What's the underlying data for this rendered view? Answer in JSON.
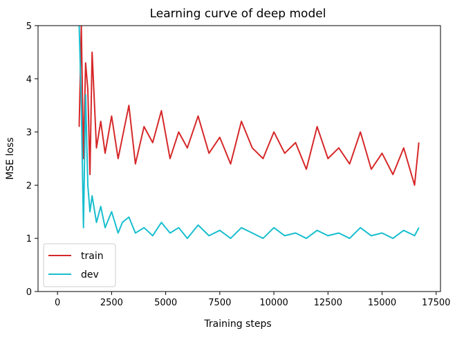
{
  "chart_data": {
    "type": "line",
    "title": "Learning curve of deep model",
    "xlabel": "Training steps",
    "ylabel": "MSE loss",
    "xlim": [
      -900,
      17700
    ],
    "ylim": [
      0,
      5
    ],
    "xticks": [
      0,
      2500,
      5000,
      7500,
      10000,
      12500,
      15000,
      17500
    ],
    "xtick_labels": [
      "0",
      "2500",
      "5000",
      "7500",
      "10000",
      "12500",
      "15000",
      "17500"
    ],
    "yticks": [
      0,
      1,
      2,
      3,
      4,
      5
    ],
    "ytick_labels": [
      "0",
      "1",
      "2",
      "3",
      "4",
      "5"
    ],
    "grid": false,
    "legend": {
      "position": "lower-left"
    },
    "series": [
      {
        "name": "train",
        "color": "#d62728",
        "x": [
          1000,
          1100,
          1200,
          1300,
          1400,
          1500,
          1600,
          1800,
          2000,
          2200,
          2500,
          2800,
          3000,
          3300,
          3600,
          4000,
          4400,
          4800,
          5200,
          5600,
          6000,
          6500,
          7000,
          7500,
          8000,
          8500,
          9000,
          9500,
          10000,
          10500,
          11000,
          11500,
          12000,
          12500,
          13000,
          13500,
          14000,
          14500,
          15000,
          15500,
          16000,
          16500,
          16700
        ],
        "values": [
          3.1,
          5.0,
          2.5,
          4.3,
          3.8,
          2.2,
          4.5,
          2.7,
          3.2,
          2.6,
          3.3,
          2.5,
          2.9,
          3.5,
          2.4,
          3.1,
          2.8,
          3.4,
          2.5,
          3.0,
          2.7,
          3.3,
          2.6,
          2.9,
          2.4,
          3.2,
          2.7,
          2.5,
          3.0,
          2.6,
          2.8,
          2.3,
          3.1,
          2.5,
          2.7,
          2.4,
          3.0,
          2.3,
          2.6,
          2.2,
          2.7,
          2.0,
          2.8
        ]
      },
      {
        "name": "dev",
        "color": "#17becf",
        "x": [
          1000,
          1100,
          1200,
          1300,
          1400,
          1500,
          1600,
          1800,
          2000,
          2200,
          2500,
          2800,
          3000,
          3300,
          3600,
          4000,
          4400,
          4800,
          5200,
          5600,
          6000,
          6500,
          7000,
          7500,
          8000,
          8500,
          9000,
          9500,
          10000,
          10500,
          11000,
          11500,
          12000,
          12500,
          13000,
          13500,
          14000,
          14500,
          15000,
          15500,
          16000,
          16500,
          16700
        ],
        "values": [
          5.0,
          3.5,
          1.2,
          3.7,
          2.0,
          1.5,
          1.8,
          1.3,
          1.6,
          1.2,
          1.5,
          1.1,
          1.3,
          1.4,
          1.1,
          1.2,
          1.05,
          1.3,
          1.1,
          1.2,
          1.0,
          1.25,
          1.05,
          1.15,
          1.0,
          1.2,
          1.1,
          1.0,
          1.2,
          1.05,
          1.1,
          1.0,
          1.15,
          1.05,
          1.1,
          1.0,
          1.2,
          1.05,
          1.1,
          1.0,
          1.15,
          1.05,
          1.2
        ]
      }
    ]
  }
}
